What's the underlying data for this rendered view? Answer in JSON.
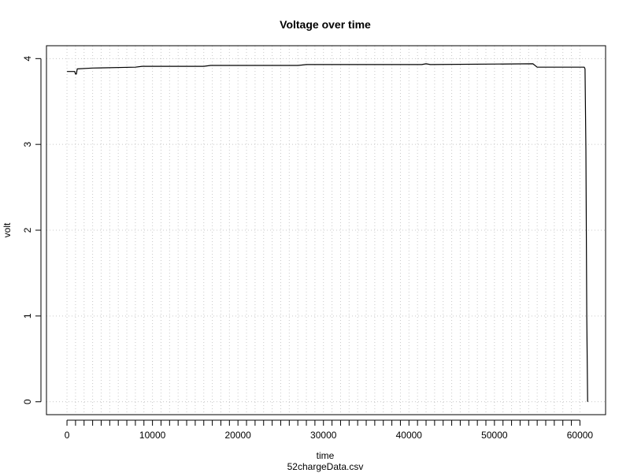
{
  "chart_data": {
    "type": "line",
    "title": "Voltage over time",
    "xlabel": "time",
    "ylabel": "volt",
    "subtitle": "52chargeData.csv",
    "xlim": [
      -2400,
      63000
    ],
    "ylim": [
      -0.15,
      4.15
    ],
    "x_ticks": [
      0,
      10000,
      20000,
      30000,
      40000,
      50000,
      60000
    ],
    "x_tick_labels": [
      "0",
      "10000",
      "20000",
      "30000",
      "40000",
      "50000",
      "60000"
    ],
    "x_minor_step": 1000,
    "y_ticks": [
      0,
      1,
      2,
      3,
      4
    ],
    "y_tick_labels": [
      "0",
      "1",
      "2",
      "3",
      "4"
    ],
    "grid": true,
    "line_color": "#000000",
    "grid_color": "#c8c8c8",
    "series": [
      {
        "x": [
          0,
          900,
          1000,
          1100,
          1200,
          3000,
          8000,
          8800,
          16000,
          16800,
          27000,
          28000,
          41500,
          42000,
          42500,
          54500,
          55000,
          60500,
          60600,
          60700,
          60800,
          60900
        ],
        "y": [
          3.85,
          3.85,
          3.82,
          3.82,
          3.88,
          3.89,
          3.9,
          3.91,
          3.91,
          3.92,
          3.92,
          3.93,
          3.93,
          3.94,
          3.93,
          3.94,
          3.9,
          3.9,
          3.88,
          2.95,
          1.0,
          0.0
        ]
      }
    ]
  }
}
